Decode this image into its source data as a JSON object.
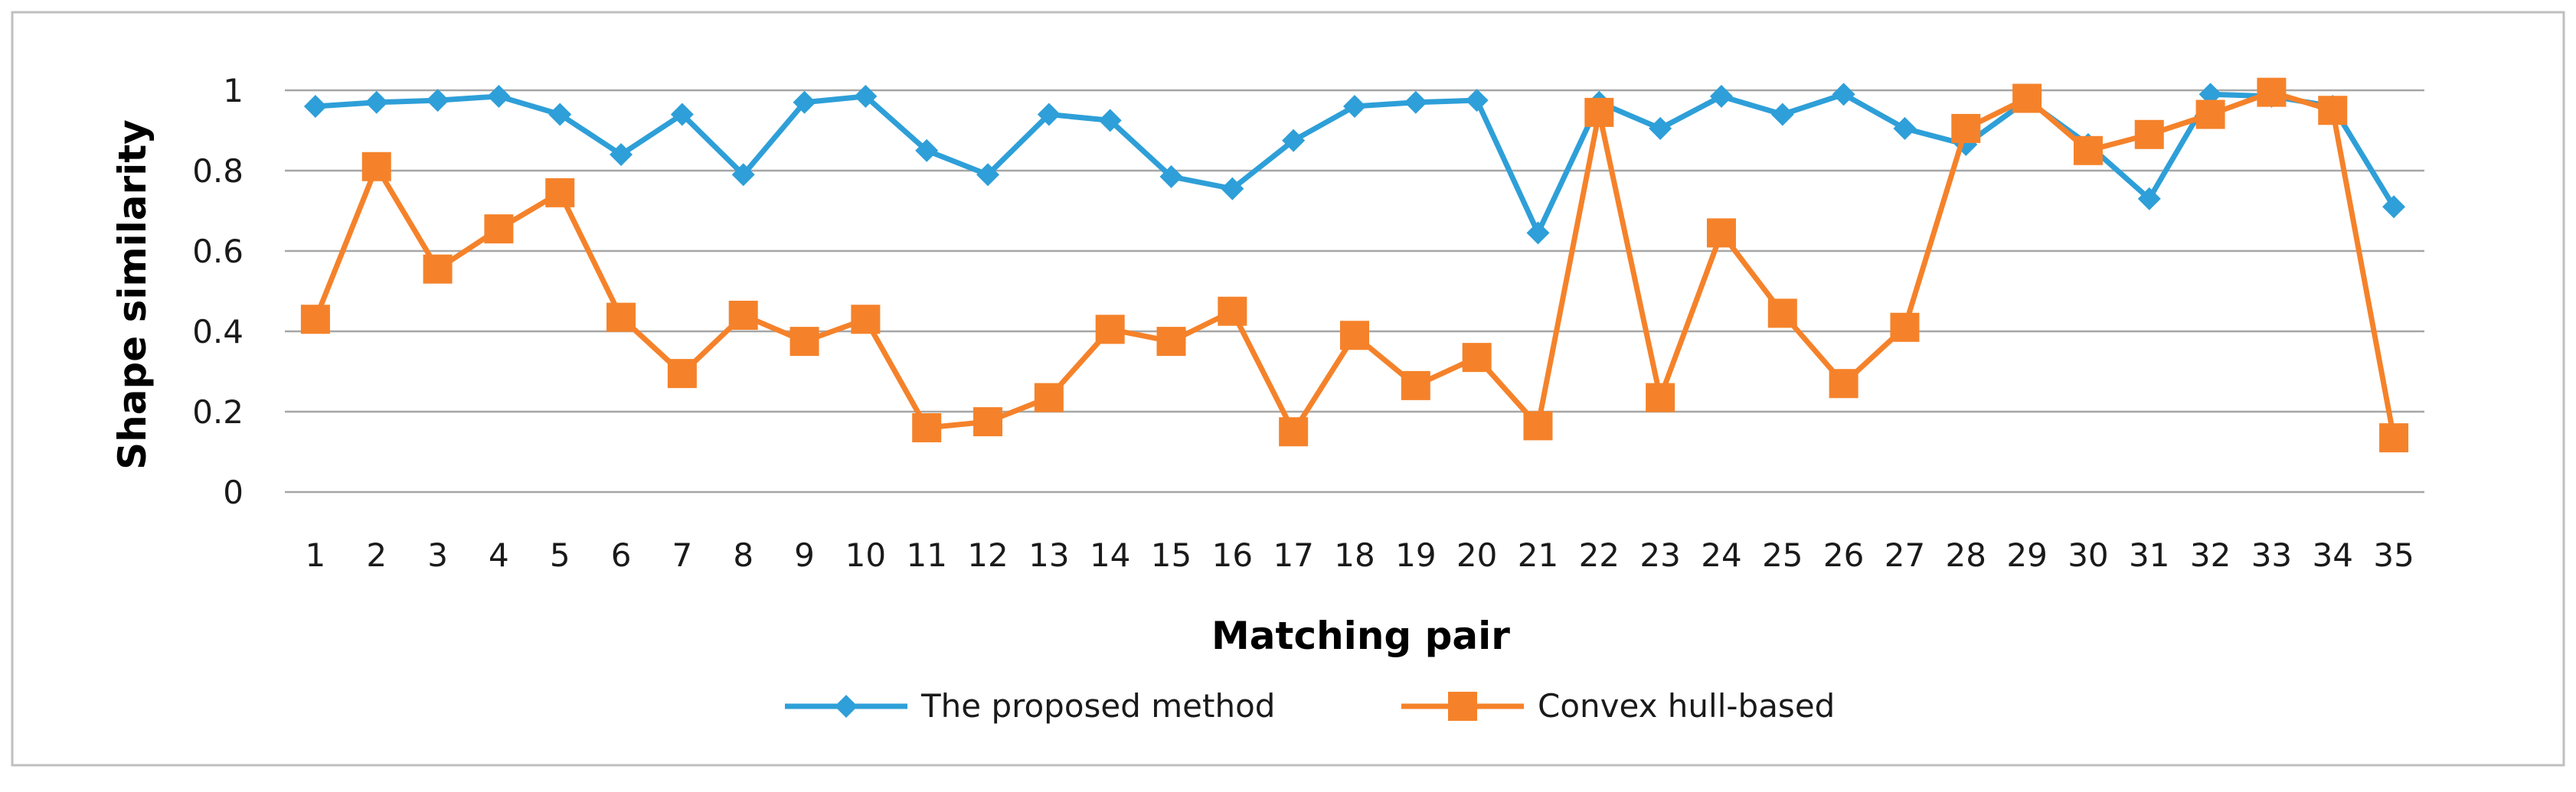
{
  "chart_data": {
    "type": "line",
    "title": "",
    "xlabel": "Matching pair",
    "ylabel": "Shape similarity",
    "ylim": [
      0,
      1
    ],
    "yticks": [
      "0",
      "0.2",
      "0.4",
      "0.6",
      "0.8",
      "1"
    ],
    "categories": [
      "1",
      "2",
      "3",
      "4",
      "5",
      "6",
      "7",
      "8",
      "9",
      "10",
      "11",
      "12",
      "13",
      "14",
      "15",
      "16",
      "17",
      "18",
      "19",
      "20",
      "21",
      "22",
      "23",
      "24",
      "25",
      "26",
      "27",
      "28",
      "29",
      "30",
      "31",
      "32",
      "33",
      "34",
      "35"
    ],
    "grid": "horizontal",
    "legend_position": "bottom",
    "series": [
      {
        "name": "The proposed method",
        "color": "#2e9fd8",
        "marker": "diamond",
        "values": [
          0.96,
          0.97,
          0.975,
          0.985,
          0.94,
          0.84,
          0.94,
          0.79,
          0.97,
          0.985,
          0.85,
          0.79,
          0.94,
          0.925,
          0.785,
          0.755,
          0.875,
          0.96,
          0.97,
          0.975,
          0.645,
          0.97,
          0.905,
          0.985,
          0.94,
          0.99,
          0.905,
          0.865,
          0.975,
          0.865,
          0.73,
          0.99,
          0.985,
          0.96,
          0.71
        ]
      },
      {
        "name": "Convex hull-based",
        "color": "#f5822a",
        "marker": "square",
        "values": [
          0.43,
          0.81,
          0.555,
          0.655,
          0.745,
          0.435,
          0.295,
          0.44,
          0.375,
          0.43,
          0.16,
          0.175,
          0.235,
          0.405,
          0.375,
          0.45,
          0.15,
          0.39,
          0.265,
          0.335,
          0.165,
          0.945,
          0.235,
          0.645,
          0.445,
          0.27,
          0.41,
          0.905,
          0.98,
          0.85,
          0.89,
          0.94,
          0.995,
          0.95,
          0.135
        ]
      }
    ]
  }
}
